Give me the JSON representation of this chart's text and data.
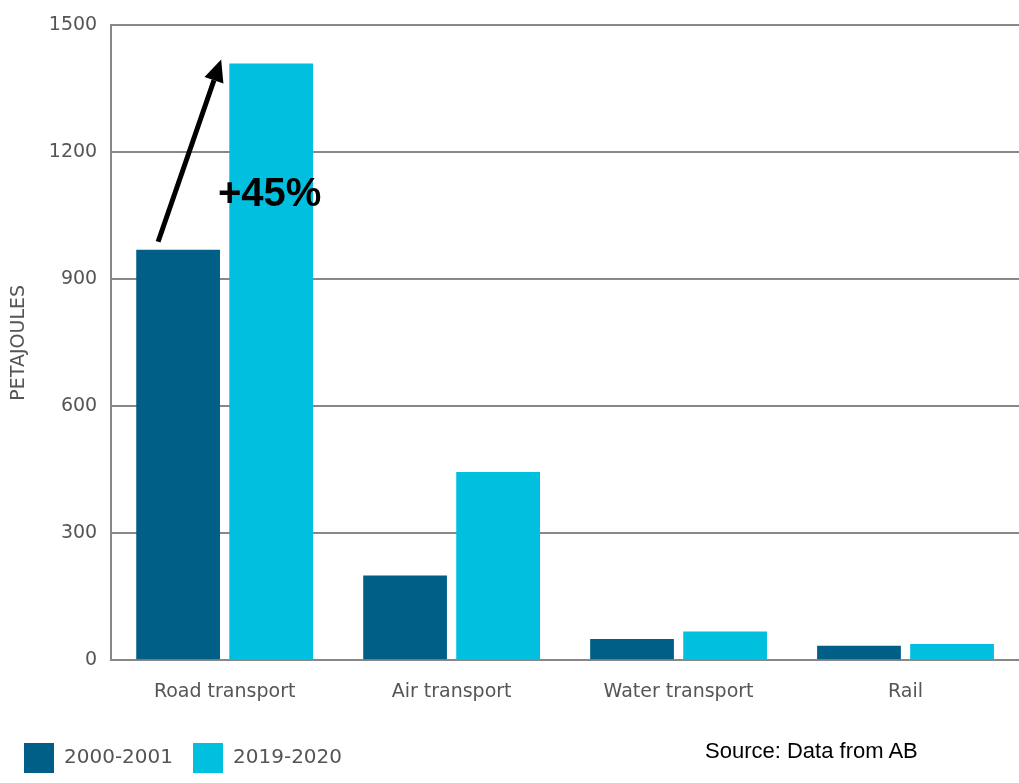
{
  "chart_data": {
    "type": "bar",
    "ylabel": "PETAJOULES",
    "categories": [
      "Road transport",
      "Air transport",
      "Water transport",
      "Rail"
    ],
    "series": [
      {
        "name": "2000-2001",
        "color": "#005f87",
        "values": [
          970,
          200,
          50,
          34
        ]
      },
      {
        "name": "2019-2020",
        "color": "#00bfdf",
        "values": [
          1410,
          445,
          68,
          38
        ]
      }
    ],
    "ylim": [
      0,
      1500
    ],
    "yticks": [
      0,
      300,
      600,
      900,
      1200,
      1500
    ],
    "grid": "y",
    "legend": "bottom left",
    "annotations": [
      {
        "text": "+45%",
        "x": "Road transport",
        "y": 1100
      },
      "Source: Data from AB"
    ]
  }
}
